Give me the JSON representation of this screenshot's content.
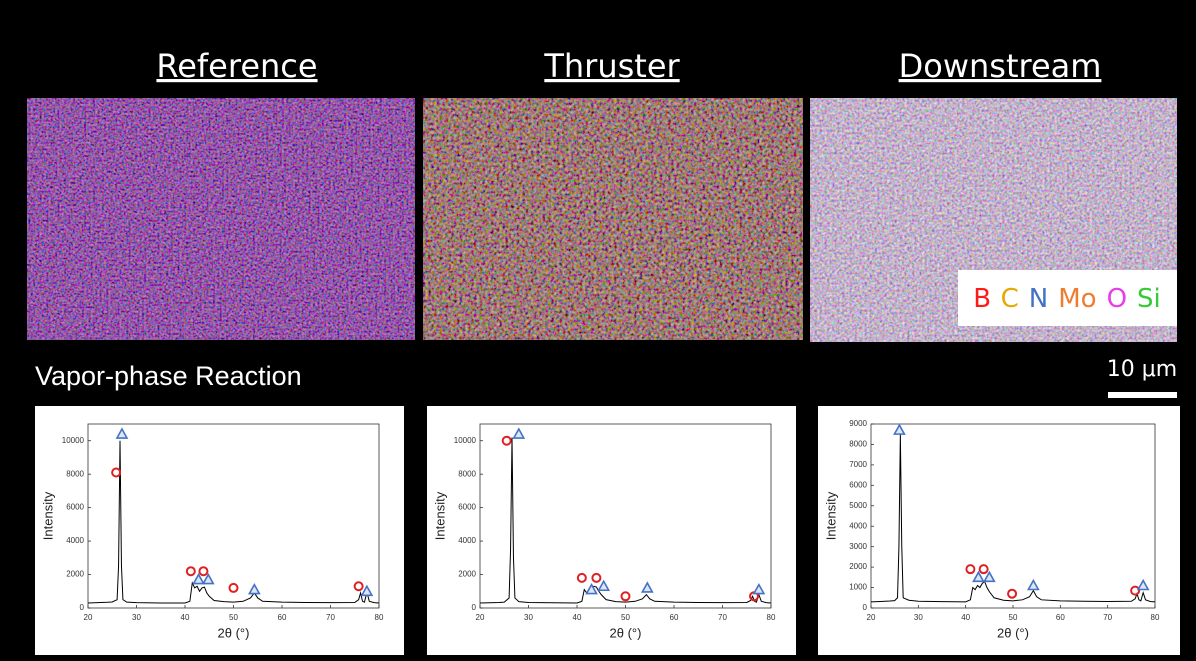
{
  "headings": [
    "Reference",
    "Thruster",
    "Downstream"
  ],
  "element_legend": [
    {
      "text": "B",
      "color": "#ff1a1a"
    },
    {
      "text": "C",
      "color": "#e8a800"
    },
    {
      "text": "N",
      "color": "#4472c4"
    },
    {
      "text": "Mo",
      "color": "#ed7d31"
    },
    {
      "text": "O",
      "color": "#e83ee8"
    },
    {
      "text": "Si",
      "color": "#33cc33"
    }
  ],
  "section_label": "Vapor-phase Reaction",
  "scale_bar": "10 μm",
  "chart_data": [
    {
      "type": "line",
      "xlabel": "2θ (°)",
      "ylabel": "Intensity",
      "color": "#000000",
      "x": [
        20,
        22,
        24,
        25,
        26,
        26.3,
        26.6,
        26.9,
        27.2,
        28,
        30,
        35,
        40,
        41,
        41.5,
        42,
        42.5,
        43,
        43.5,
        44,
        44.5,
        45,
        46,
        48,
        50,
        52,
        53.5,
        54.3,
        55,
        56,
        60,
        65,
        70,
        75,
        75.8,
        76.2,
        76.6,
        77,
        77.5,
        78,
        79,
        80
      ],
      "values": [
        300,
        320,
        340,
        360,
        500,
        2500,
        10000,
        2500,
        500,
        350,
        320,
        300,
        300,
        400,
        1500,
        1200,
        1300,
        1000,
        1200,
        1250,
        900,
        700,
        450,
        380,
        350,
        400,
        600,
        900,
        600,
        400,
        350,
        330,
        320,
        330,
        500,
        900,
        400,
        350,
        950,
        400,
        320,
        300
      ],
      "xlim": [
        20,
        80
      ],
      "xticks": [
        20,
        30,
        40,
        50,
        60,
        70,
        80
      ],
      "ylim": [
        0,
        11000
      ],
      "yticks": [
        0,
        2000,
        4000,
        6000,
        8000,
        10000
      ],
      "markers": [
        {
          "shape": "circle",
          "color": "#e02020",
          "x": [
            25.8,
            41.2,
            43.8,
            50,
            75.8
          ],
          "y": [
            8100,
            2200,
            2200,
            1200,
            1300
          ]
        },
        {
          "shape": "triangle",
          "color": "#4472c4",
          "x": [
            27,
            42.8,
            44.8,
            54.3,
            77.5
          ],
          "y": [
            10400,
            1700,
            1700,
            1100,
            1000
          ]
        }
      ]
    },
    {
      "type": "line",
      "xlabel": "2θ (°)",
      "ylabel": "Intensity",
      "color": "#000000",
      "x": [
        20,
        22,
        24,
        25,
        26,
        26.3,
        26.6,
        26.9,
        27.2,
        28,
        30,
        35,
        40,
        41,
        41.5,
        42,
        42.5,
        43,
        43.5,
        44,
        44.5,
        45,
        46,
        48,
        50,
        52,
        53.5,
        54.3,
        55,
        56,
        60,
        65,
        70,
        75,
        75.8,
        76.2,
        76.6,
        77,
        77.5,
        78,
        79,
        80
      ],
      "values": [
        300,
        310,
        330,
        350,
        600,
        3500,
        10200,
        3000,
        600,
        380,
        330,
        310,
        300,
        400,
        1100,
        900,
        1000,
        1200,
        1300,
        1250,
        1000,
        800,
        500,
        380,
        350,
        400,
        550,
        800,
        550,
        400,
        350,
        330,
        320,
        330,
        450,
        700,
        400,
        350,
        800,
        400,
        320,
        300
      ],
      "xlim": [
        20,
        80
      ],
      "xticks": [
        20,
        30,
        40,
        50,
        60,
        70,
        80
      ],
      "ylim": [
        0,
        11000
      ],
      "yticks": [
        0,
        2000,
        4000,
        6000,
        8000,
        10000
      ],
      "markers": [
        {
          "shape": "circle",
          "color": "#e02020",
          "x": [
            25.5,
            41,
            44,
            50,
            76.5
          ],
          "y": [
            10000,
            1800,
            1800,
            700,
            700
          ]
        },
        {
          "shape": "triangle",
          "color": "#4472c4",
          "x": [
            28,
            43,
            45.5,
            54.5,
            77.5
          ],
          "y": [
            10400,
            1100,
            1300,
            1200,
            1100
          ]
        }
      ]
    },
    {
      "type": "line",
      "xlabel": "2θ (°)",
      "ylabel": "Intensity",
      "color": "#000000",
      "x": [
        20,
        22,
        24,
        25,
        25.6,
        25.9,
        26.2,
        26.5,
        26.8,
        28,
        30,
        35,
        40,
        41,
        41.5,
        42,
        42.5,
        43,
        43.5,
        44,
        44.5,
        45,
        46,
        48,
        50,
        52,
        53.5,
        54.3,
        55,
        56,
        60,
        65,
        70,
        75,
        75.8,
        76.2,
        76.6,
        77,
        77.5,
        78,
        79,
        80
      ],
      "values": [
        300,
        320,
        340,
        360,
        500,
        3000,
        8500,
        3000,
        500,
        380,
        330,
        310,
        300,
        400,
        1000,
        900,
        1100,
        1000,
        1200,
        1300,
        1000,
        800,
        500,
        380,
        350,
        400,
        550,
        850,
        550,
        400,
        350,
        330,
        320,
        330,
        450,
        700,
        400,
        350,
        750,
        400,
        320,
        300
      ],
      "xlim": [
        20,
        80
      ],
      "xticks": [
        20,
        30,
        40,
        50,
        60,
        70,
        80
      ],
      "ylim": [
        0,
        9000
      ],
      "yticks": [
        0,
        1000,
        2000,
        3000,
        4000,
        5000,
        6000,
        7000,
        8000,
        9000
      ],
      "markers": [
        {
          "shape": "circle",
          "color": "#e02020",
          "x": [
            41,
            43.8,
            49.8,
            75.8
          ],
          "y": [
            1900,
            1900,
            700,
            850
          ]
        },
        {
          "shape": "triangle",
          "color": "#4472c4",
          "x": [
            26,
            42.7,
            45,
            54.3,
            77.5
          ],
          "y": [
            8700,
            1500,
            1500,
            1100,
            1100
          ]
        }
      ]
    }
  ]
}
